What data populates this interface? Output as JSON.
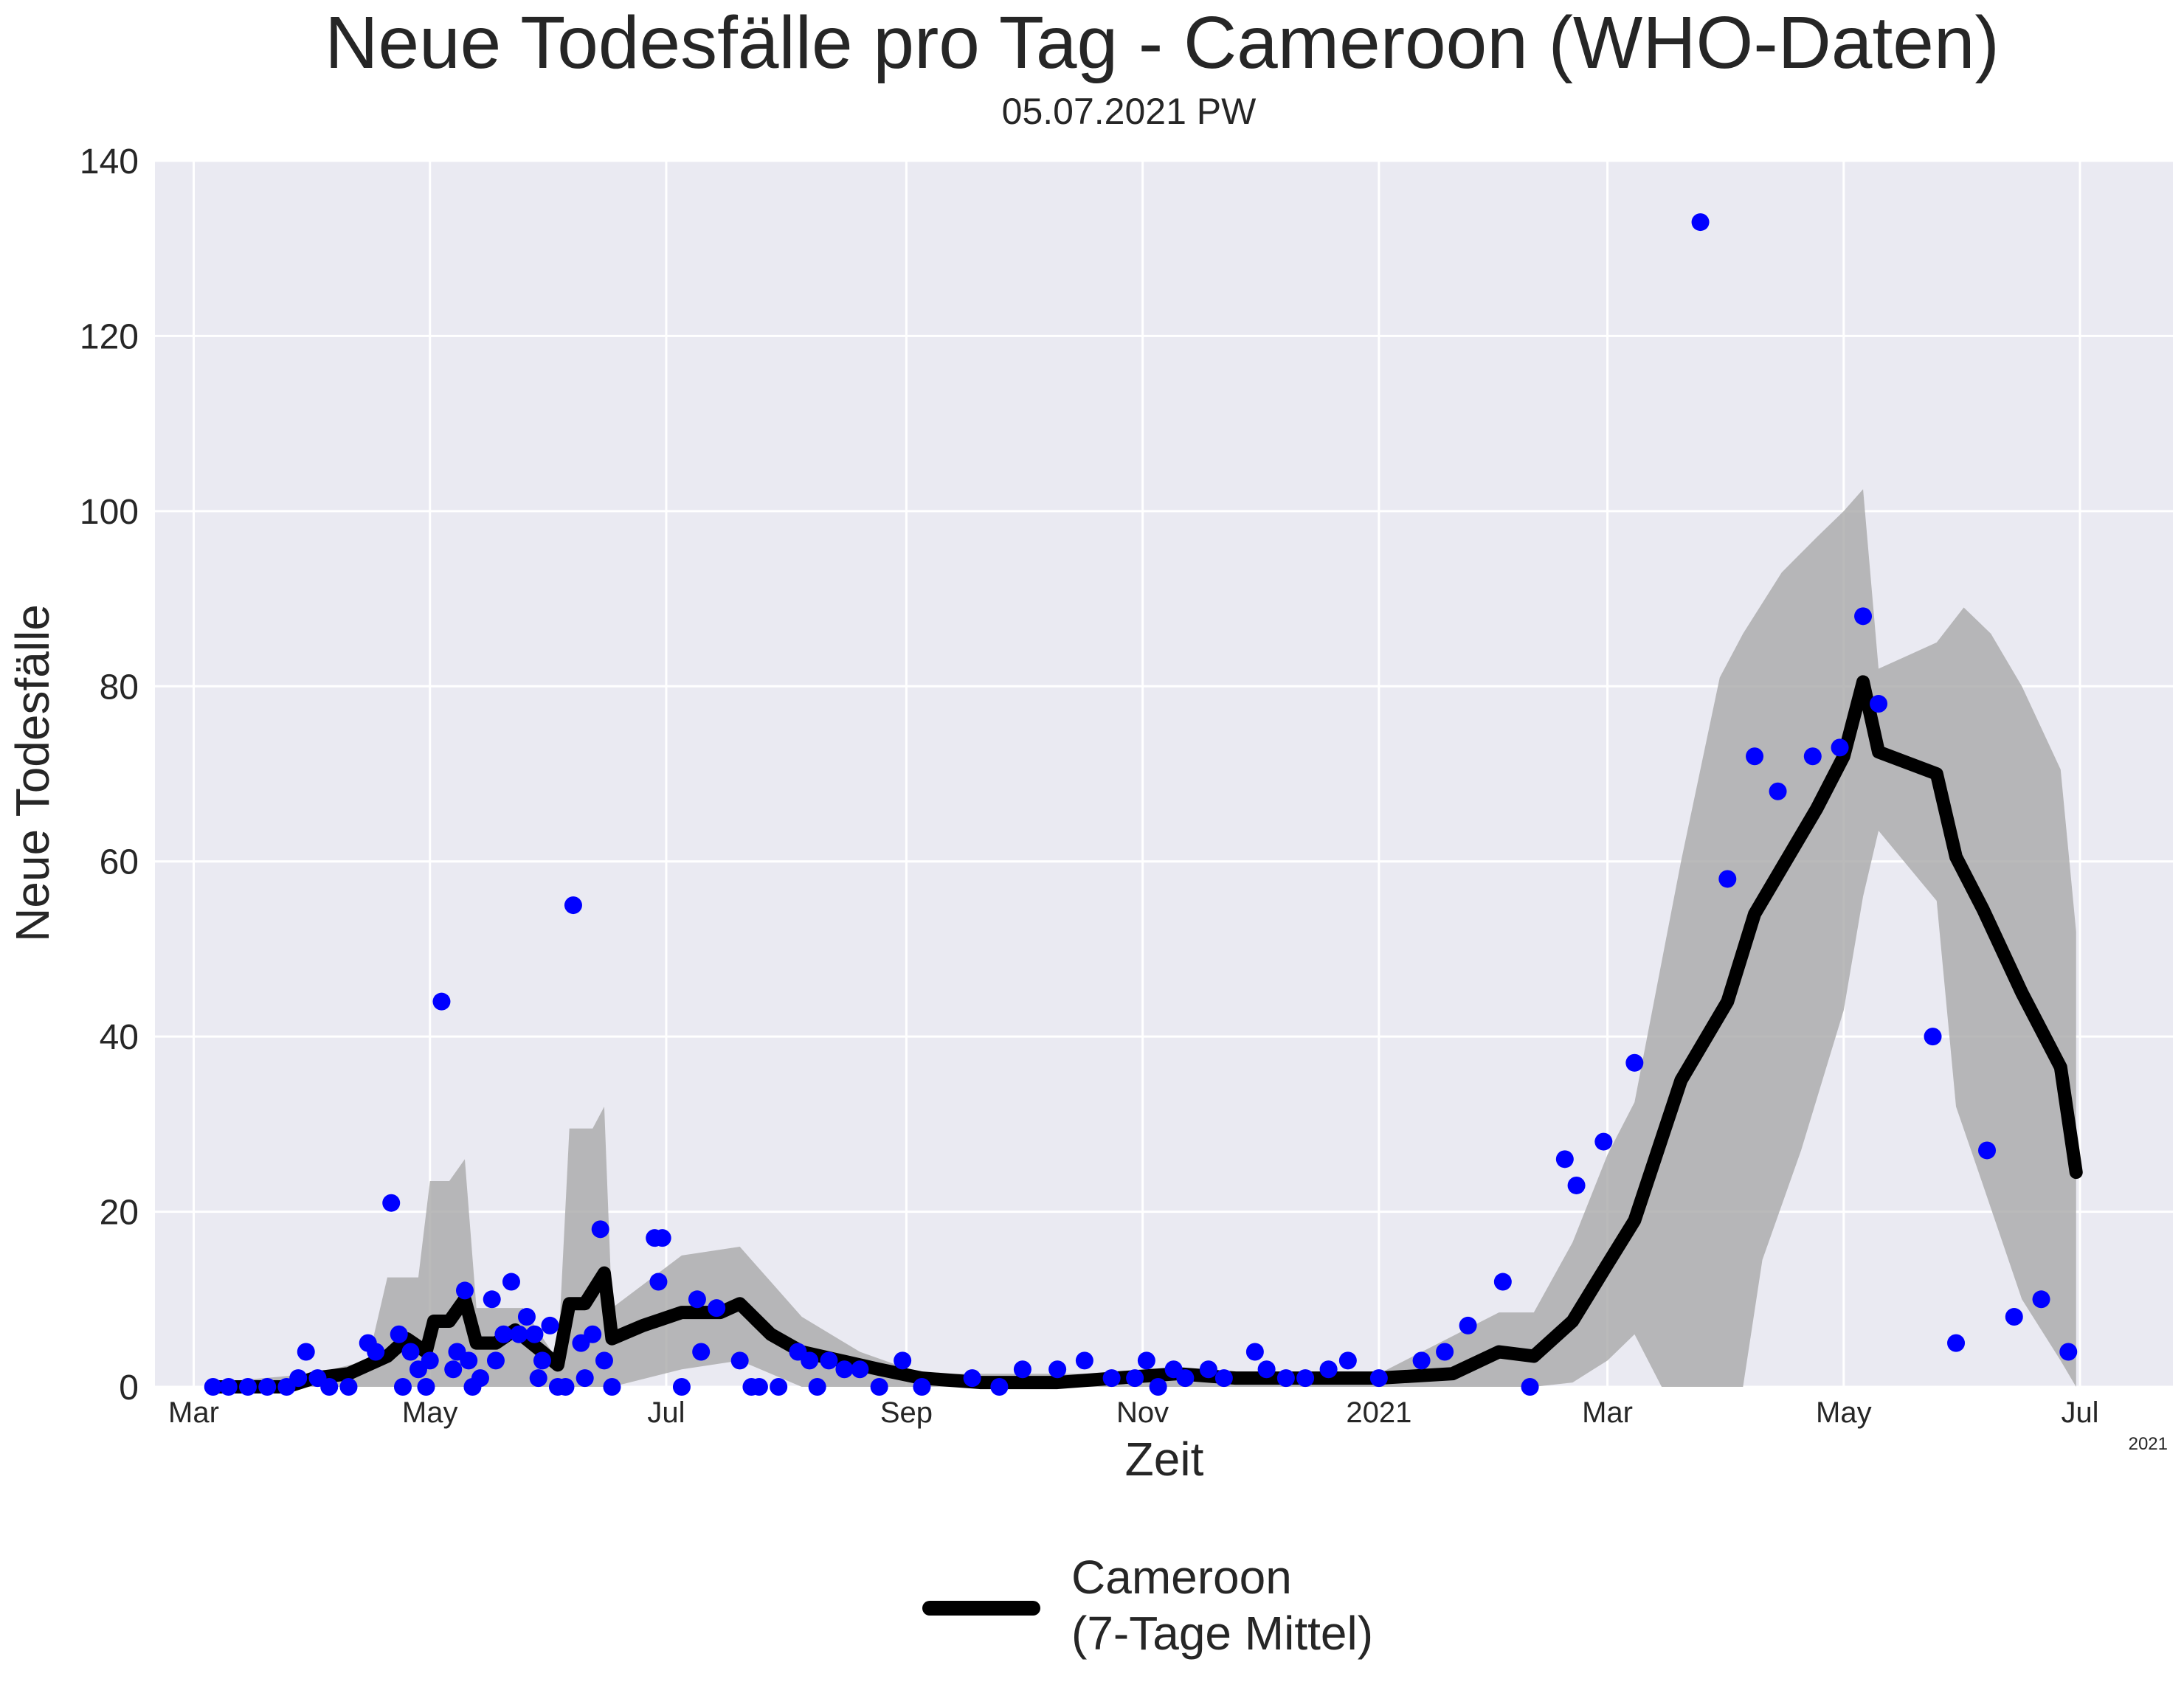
{
  "chart_data": {
    "type": "line",
    "title": "Neue Todesfälle pro Tag - Cameroon (WHO-Daten)",
    "subtitle": "05.07.2021 PW",
    "xlabel": "Zeit",
    "ylabel": "Neue Todesfälle",
    "year_note": "2021",
    "grid": true,
    "legend_placement": "bottom-center",
    "ylim": [
      0,
      140
    ],
    "xlim": [
      "2020-02-20",
      "2021-07-25"
    ],
    "yticks": [
      0,
      20,
      40,
      60,
      80,
      100,
      120,
      140
    ],
    "xticks": [
      {
        "date": "2020-03-01",
        "label": "Mar"
      },
      {
        "date": "2020-05-01",
        "label": "May"
      },
      {
        "date": "2020-07-01",
        "label": "Jul"
      },
      {
        "date": "2020-09-01",
        "label": "Sep"
      },
      {
        "date": "2020-11-01",
        "label": "Nov"
      },
      {
        "date": "2021-01-01",
        "label": "2021"
      },
      {
        "date": "2021-03-01",
        "label": "Mar"
      },
      {
        "date": "2021-05-01",
        "label": "May"
      },
      {
        "date": "2021-07-01",
        "label": "Jul"
      }
    ],
    "colors": {
      "plot_bg": "#eaeaf2",
      "grid": "#ffffff",
      "points": "#0000ff",
      "line": "#000000",
      "band": "#a9a9a9"
    },
    "series": [
      {
        "name": "Cameroon\n(7-Tage Mittel)",
        "kind": "line",
        "points": [
          [
            "2020-03-06",
            0
          ],
          [
            "2020-03-15",
            0
          ],
          [
            "2020-03-25",
            0
          ],
          [
            "2020-04-01",
            1
          ],
          [
            "2020-04-10",
            1.5
          ],
          [
            "2020-04-20",
            3.5
          ],
          [
            "2020-04-25",
            5.5
          ],
          [
            "2020-04-30",
            4
          ],
          [
            "2020-05-02",
            7.5
          ],
          [
            "2020-05-06",
            7.5
          ],
          [
            "2020-05-10",
            10
          ],
          [
            "2020-05-13",
            5
          ],
          [
            "2020-05-18",
            5
          ],
          [
            "2020-05-23",
            6.5
          ],
          [
            "2020-05-30",
            4
          ],
          [
            "2020-06-03",
            2.5
          ],
          [
            "2020-06-06",
            9.5
          ],
          [
            "2020-06-10",
            9.5
          ],
          [
            "2020-06-15",
            13
          ],
          [
            "2020-06-17",
            5.5
          ],
          [
            "2020-06-25",
            7
          ],
          [
            "2020-07-05",
            8.5
          ],
          [
            "2020-07-15",
            8.5
          ],
          [
            "2020-07-20",
            9.5
          ],
          [
            "2020-07-28",
            6
          ],
          [
            "2020-08-05",
            4
          ],
          [
            "2020-08-15",
            3
          ],
          [
            "2020-08-25",
            2
          ],
          [
            "2020-09-05",
            1
          ],
          [
            "2020-09-20",
            0.5
          ],
          [
            "2020-10-10",
            0.5
          ],
          [
            "2020-10-25",
            1
          ],
          [
            "2020-11-10",
            1.5
          ],
          [
            "2020-11-25",
            1
          ],
          [
            "2020-12-10",
            1
          ],
          [
            "2021-01-01",
            1
          ],
          [
            "2021-01-20",
            1.5
          ],
          [
            "2021-02-01",
            4
          ],
          [
            "2021-02-10",
            3.5
          ],
          [
            "2021-02-20",
            7.5
          ],
          [
            "2021-03-01",
            14
          ],
          [
            "2021-03-08",
            19
          ],
          [
            "2021-03-20",
            35
          ],
          [
            "2021-04-01",
            44
          ],
          [
            "2021-04-08",
            54
          ],
          [
            "2021-04-16",
            60
          ],
          [
            "2021-04-24",
            66
          ],
          [
            "2021-05-01",
            72
          ],
          [
            "2021-05-06",
            80.5
          ],
          [
            "2021-05-10",
            72.5
          ],
          [
            "2021-05-25",
            70
          ],
          [
            "2021-05-30",
            60.5
          ],
          [
            "2021-06-06",
            54.5
          ],
          [
            "2021-06-16",
            45
          ],
          [
            "2021-06-26",
            36.5
          ],
          [
            "2021-06-30",
            24.5
          ]
        ]
      },
      {
        "kind": "band",
        "upper": [
          [
            "2020-03-06",
            0.5
          ],
          [
            "2020-04-01",
            1.5
          ],
          [
            "2020-04-15",
            3
          ],
          [
            "2020-04-20",
            12.5
          ],
          [
            "2020-04-28",
            12.5
          ],
          [
            "2020-05-01",
            23.5
          ],
          [
            "2020-05-06",
            23.5
          ],
          [
            "2020-05-10",
            26
          ],
          [
            "2020-05-13",
            9
          ],
          [
            "2020-05-25",
            9
          ],
          [
            "2020-06-03",
            3
          ],
          [
            "2020-06-06",
            29.5
          ],
          [
            "2020-06-12",
            29.5
          ],
          [
            "2020-06-15",
            32
          ],
          [
            "2020-06-17",
            9
          ],
          [
            "2020-07-05",
            15
          ],
          [
            "2020-07-20",
            16
          ],
          [
            "2020-07-28",
            12
          ],
          [
            "2020-08-05",
            8
          ],
          [
            "2020-08-20",
            4
          ],
          [
            "2020-09-05",
            1.5
          ],
          [
            "2020-11-01",
            1.5
          ],
          [
            "2021-01-01",
            1.5
          ],
          [
            "2021-02-01",
            8.5
          ],
          [
            "2021-02-10",
            8.5
          ],
          [
            "2021-02-20",
            16.5
          ],
          [
            "2021-03-01",
            26.5
          ],
          [
            "2021-03-08",
            32.5
          ],
          [
            "2021-03-20",
            60
          ],
          [
            "2021-03-30",
            81
          ],
          [
            "2021-04-05",
            86
          ],
          [
            "2021-04-15",
            93
          ],
          [
            "2021-04-24",
            97
          ],
          [
            "2021-05-01",
            100
          ],
          [
            "2021-05-06",
            102.5
          ],
          [
            "2021-05-10",
            82
          ],
          [
            "2021-05-25",
            85
          ],
          [
            "2021-06-01",
            89
          ],
          [
            "2021-06-08",
            86
          ],
          [
            "2021-06-16",
            80
          ],
          [
            "2021-06-26",
            70.5
          ],
          [
            "2021-06-30",
            52
          ]
        ],
        "lower": [
          [
            "2020-03-06",
            0
          ],
          [
            "2020-04-15",
            0
          ],
          [
            "2020-04-28",
            0
          ],
          [
            "2020-05-13",
            0
          ],
          [
            "2020-06-06",
            0
          ],
          [
            "2020-06-17",
            0
          ],
          [
            "2020-07-05",
            2
          ],
          [
            "2020-07-20",
            3
          ],
          [
            "2020-08-05",
            0
          ],
          [
            "2021-02-10",
            0
          ],
          [
            "2021-02-20",
            0.5
          ],
          [
            "2021-03-01",
            3
          ],
          [
            "2021-03-08",
            6
          ],
          [
            "2021-03-15",
            0
          ],
          [
            "2021-03-30",
            0
          ],
          [
            "2021-04-05",
            0
          ],
          [
            "2021-04-10",
            14.5
          ],
          [
            "2021-04-20",
            27
          ],
          [
            "2021-05-01",
            43
          ],
          [
            "2021-05-06",
            56
          ],
          [
            "2021-05-10",
            63.5
          ],
          [
            "2021-05-25",
            55.5
          ],
          [
            "2021-05-30",
            32
          ],
          [
            "2021-06-06",
            23
          ],
          [
            "2021-06-16",
            10
          ],
          [
            "2021-06-26",
            3
          ],
          [
            "2021-06-30",
            0
          ]
        ]
      },
      {
        "kind": "scatter",
        "points": [
          [
            "2020-03-06",
            0
          ],
          [
            "2020-03-10",
            0
          ],
          [
            "2020-03-15",
            0
          ],
          [
            "2020-03-20",
            0
          ],
          [
            "2020-03-25",
            0
          ],
          [
            "2020-03-28",
            1
          ],
          [
            "2020-03-30",
            4
          ],
          [
            "2020-04-02",
            1
          ],
          [
            "2020-04-05",
            0
          ],
          [
            "2020-04-10",
            0
          ],
          [
            "2020-04-15",
            5
          ],
          [
            "2020-04-17",
            4
          ],
          [
            "2020-04-21",
            21
          ],
          [
            "2020-04-23",
            6
          ],
          [
            "2020-04-24",
            0
          ],
          [
            "2020-04-26",
            4
          ],
          [
            "2020-04-28",
            2
          ],
          [
            "2020-04-30",
            0
          ],
          [
            "2020-05-01",
            3
          ],
          [
            "2020-05-04",
            44
          ],
          [
            "2020-05-07",
            2
          ],
          [
            "2020-05-08",
            4
          ],
          [
            "2020-05-10",
            11
          ],
          [
            "2020-05-11",
            3
          ],
          [
            "2020-05-12",
            0
          ],
          [
            "2020-05-14",
            1
          ],
          [
            "2020-05-17",
            10
          ],
          [
            "2020-05-18",
            3
          ],
          [
            "2020-05-20",
            6
          ],
          [
            "2020-05-22",
            12
          ],
          [
            "2020-05-24",
            6
          ],
          [
            "2020-05-26",
            8
          ],
          [
            "2020-05-28",
            6
          ],
          [
            "2020-05-29",
            1
          ],
          [
            "2020-05-30",
            3
          ],
          [
            "2020-06-01",
            7
          ],
          [
            "2020-06-03",
            0
          ],
          [
            "2020-06-05",
            0
          ],
          [
            "2020-06-07",
            55
          ],
          [
            "2020-06-09",
            5
          ],
          [
            "2020-06-10",
            1
          ],
          [
            "2020-06-12",
            6
          ],
          [
            "2020-06-14",
            18
          ],
          [
            "2020-06-15",
            3
          ],
          [
            "2020-06-17",
            0
          ],
          [
            "2020-06-28",
            17
          ],
          [
            "2020-06-29",
            12
          ],
          [
            "2020-06-30",
            17
          ],
          [
            "2020-07-05",
            0
          ],
          [
            "2020-07-09",
            10
          ],
          [
            "2020-07-10",
            4
          ],
          [
            "2020-07-14",
            9
          ],
          [
            "2020-07-20",
            3
          ],
          [
            "2020-07-23",
            0
          ],
          [
            "2020-07-25",
            0
          ],
          [
            "2020-07-30",
            0
          ],
          [
            "2020-08-04",
            4
          ],
          [
            "2020-08-07",
            3
          ],
          [
            "2020-08-09",
            0
          ],
          [
            "2020-08-12",
            3
          ],
          [
            "2020-08-16",
            2
          ],
          [
            "2020-08-20",
            2
          ],
          [
            "2020-08-25",
            0
          ],
          [
            "2020-08-31",
            3
          ],
          [
            "2020-09-05",
            0
          ],
          [
            "2020-09-18",
            1
          ],
          [
            "2020-09-25",
            0
          ],
          [
            "2020-10-01",
            2
          ],
          [
            "2020-10-10",
            2
          ],
          [
            "2020-10-17",
            3
          ],
          [
            "2020-10-24",
            1
          ],
          [
            "2020-10-30",
            1
          ],
          [
            "2020-11-02",
            3
          ],
          [
            "2020-11-05",
            0
          ],
          [
            "2020-11-09",
            2
          ],
          [
            "2020-11-12",
            1
          ],
          [
            "2020-11-18",
            2
          ],
          [
            "2020-11-22",
            1
          ],
          [
            "2020-11-30",
            4
          ],
          [
            "2020-12-03",
            2
          ],
          [
            "2020-12-08",
            1
          ],
          [
            "2020-12-13",
            1
          ],
          [
            "2020-12-19",
            2
          ],
          [
            "2020-12-24",
            3
          ],
          [
            "2021-01-01",
            1
          ],
          [
            "2021-01-12",
            3
          ],
          [
            "2021-01-18",
            4
          ],
          [
            "2021-01-24",
            7
          ],
          [
            "2021-02-02",
            12
          ],
          [
            "2021-02-09",
            0
          ],
          [
            "2021-02-18",
            26
          ],
          [
            "2021-02-21",
            23
          ],
          [
            "2021-02-28",
            28
          ],
          [
            "2021-03-08",
            37
          ],
          [
            "2021-03-25",
            133
          ],
          [
            "2021-04-01",
            58
          ],
          [
            "2021-04-08",
            72
          ],
          [
            "2021-04-14",
            68
          ],
          [
            "2021-04-23",
            72
          ],
          [
            "2021-04-30",
            73
          ],
          [
            "2021-05-06",
            88
          ],
          [
            "2021-05-10",
            78
          ],
          [
            "2021-05-24",
            40
          ],
          [
            "2021-05-30",
            5
          ],
          [
            "2021-06-07",
            27
          ],
          [
            "2021-06-14",
            8
          ],
          [
            "2021-06-21",
            10
          ],
          [
            "2021-06-28",
            4
          ]
        ]
      }
    ]
  }
}
